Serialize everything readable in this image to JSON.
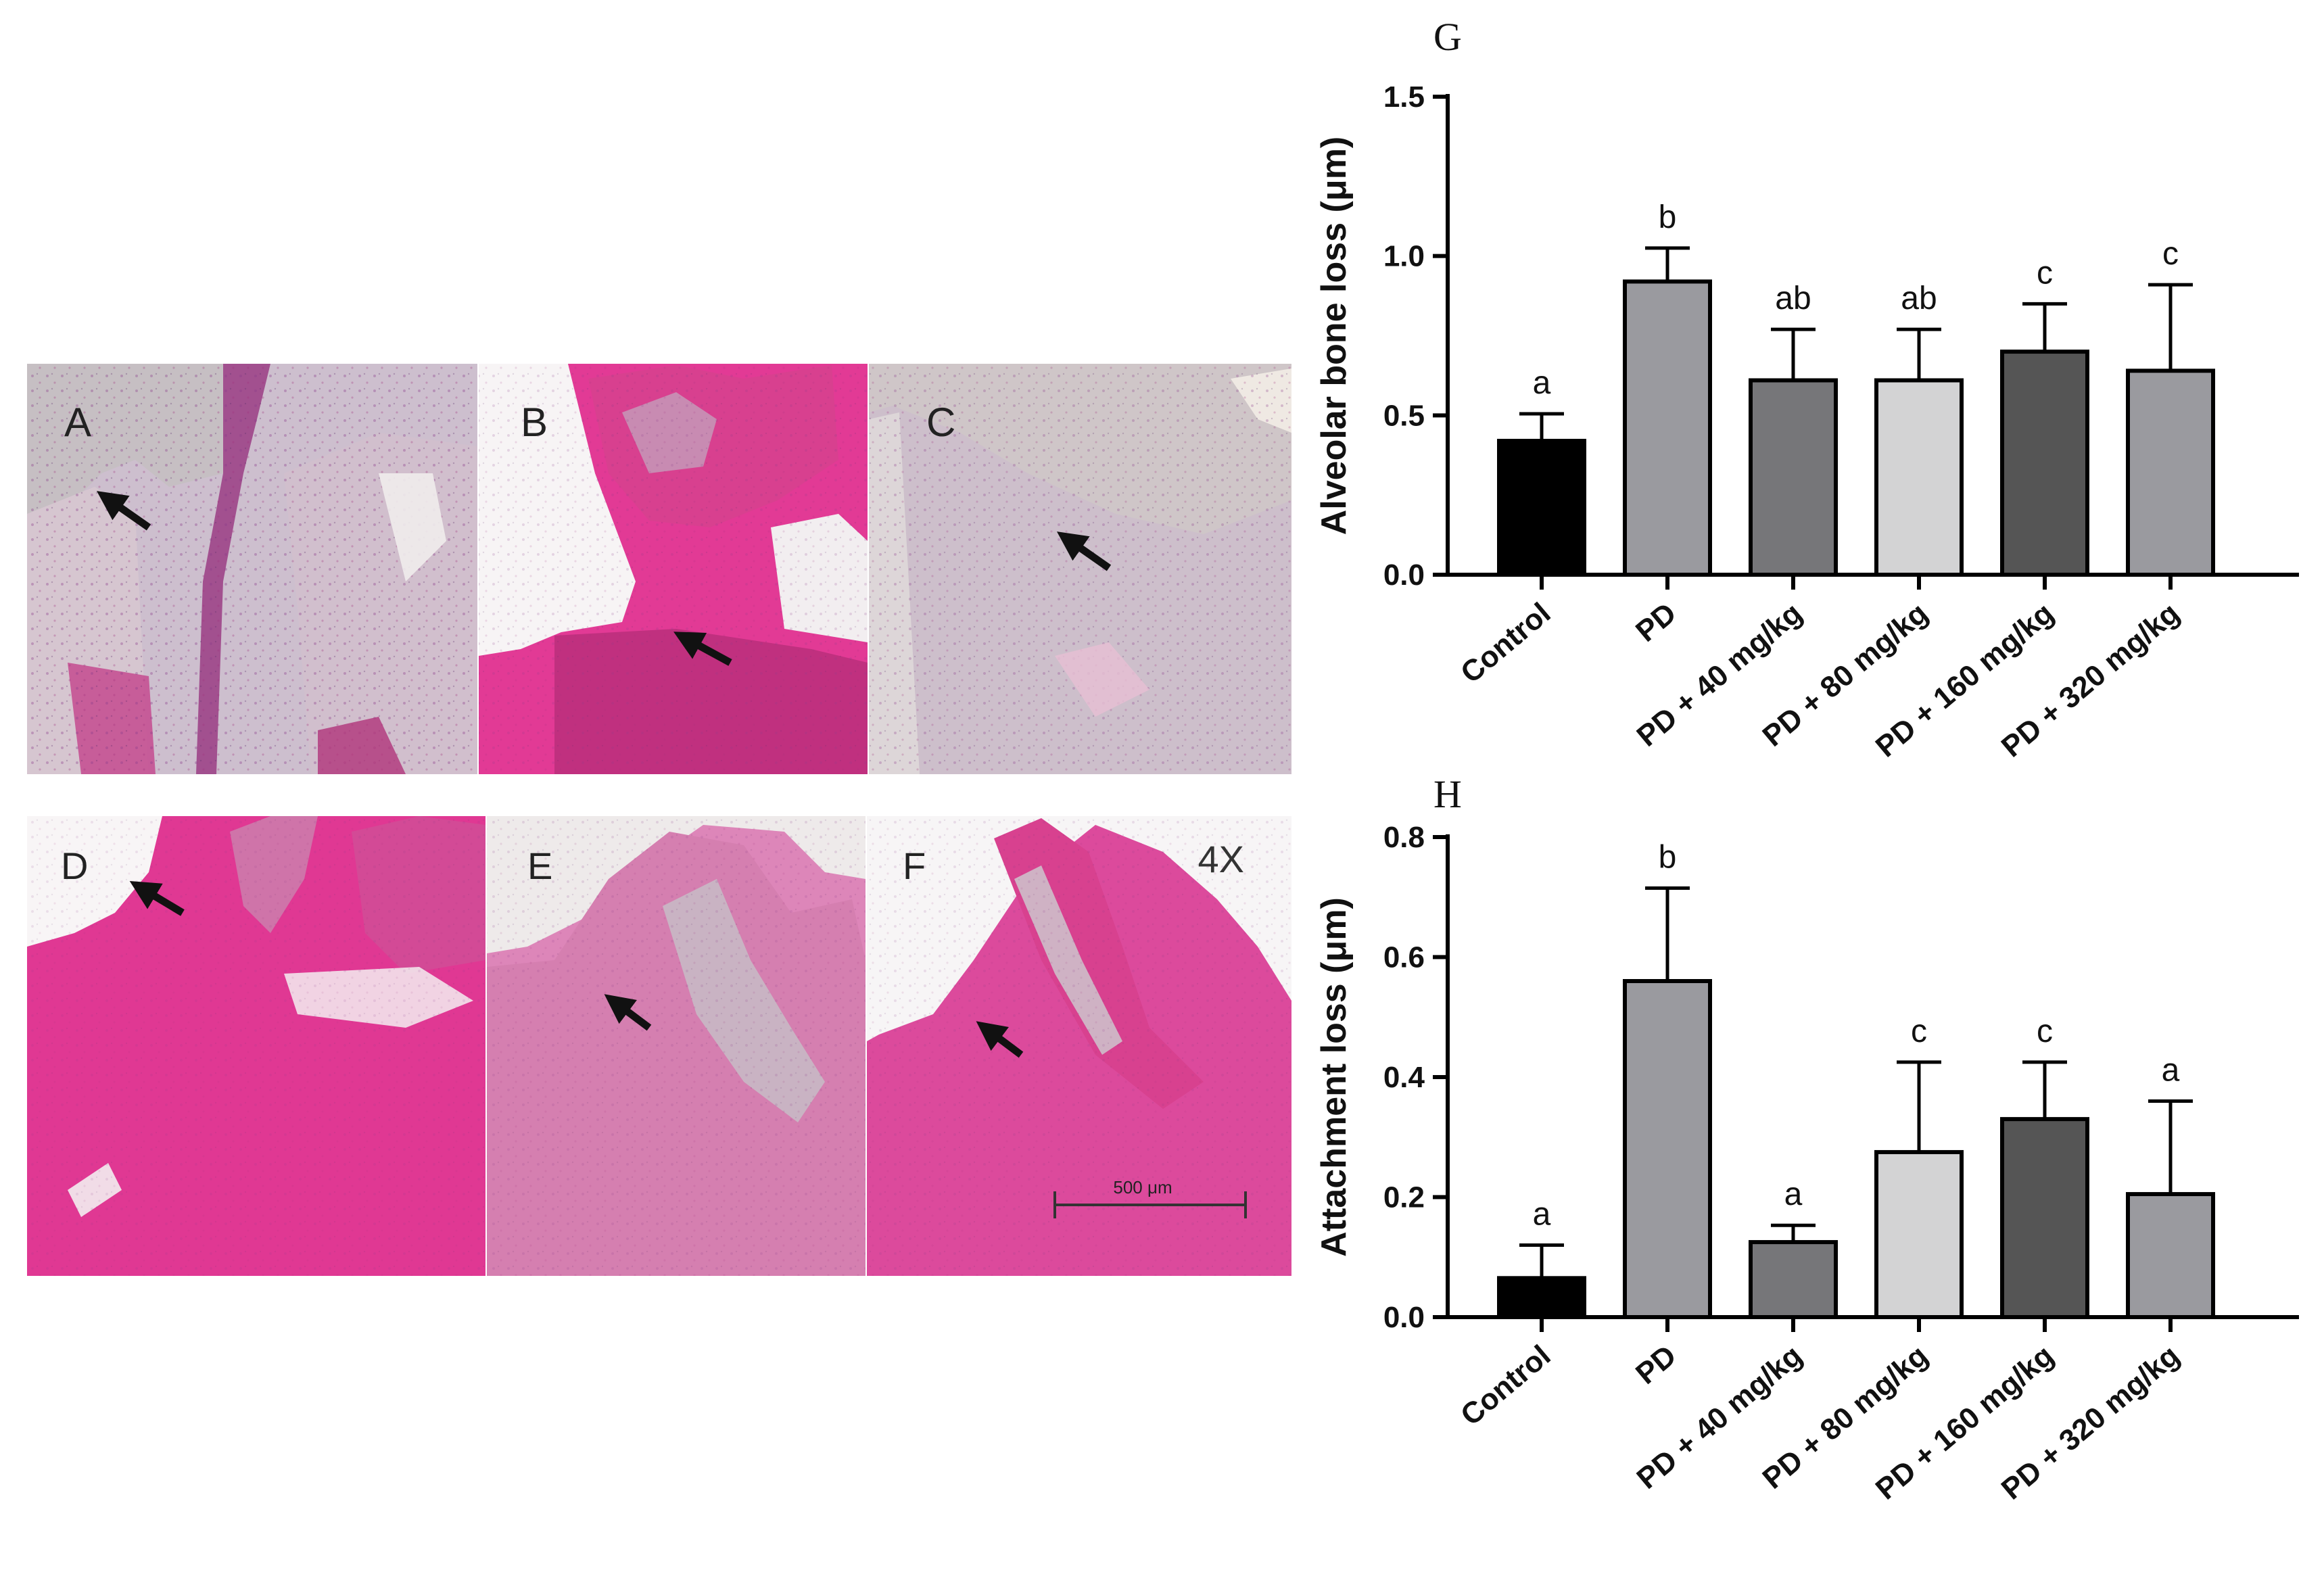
{
  "panels": {
    "labels": [
      "A",
      "B",
      "C",
      "D",
      "E",
      "F"
    ],
    "magnification": "4X",
    "scale_bar": "500 μm",
    "colors": {
      "pale_tissue": "#c9b9c9",
      "eosin": "#e0338f",
      "background": "#f2f0ee",
      "arrow": "#111111"
    }
  },
  "chart_data": [
    {
      "type": "bar",
      "panel_letter": "G",
      "ylabel": "Alveolar bone loss (μm)",
      "xlabel": "",
      "categories": [
        "Control",
        "PD",
        "PD + 40 mg/kg",
        "PD + 80 mg/kg",
        "PD + 160 mg/kg",
        "PD + 320 mg/kg"
      ],
      "values": [
        0.42,
        0.92,
        0.61,
        0.61,
        0.7,
        0.64
      ],
      "errors": [
        0.085,
        0.105,
        0.16,
        0.16,
        0.15,
        0.27
      ],
      "significance": [
        "a",
        "b",
        "ab",
        "ab",
        "c",
        "c"
      ],
      "bar_colors": [
        "#000000",
        "#9a9a9f",
        "#767679",
        "#d3d3d4",
        "#555555",
        "#9a9a9f"
      ],
      "ylim": [
        0,
        1.5
      ],
      "yticks": [
        "0.0",
        "0.5",
        "1.0",
        "1.5"
      ],
      "grid": false
    },
    {
      "type": "bar",
      "panel_letter": "H",
      "ylabel": "Attachment loss (μm)",
      "xlabel": "",
      "categories": [
        "Control",
        "PD",
        "PD + 40 mg/kg",
        "PD + 80 mg/kg",
        "PD + 160 mg/kg",
        "PD + 320 mg/kg"
      ],
      "values": [
        0.065,
        0.56,
        0.125,
        0.275,
        0.33,
        0.205
      ],
      "errors": [
        0.055,
        0.155,
        0.028,
        0.15,
        0.095,
        0.155
      ],
      "significance": [
        "a",
        "b",
        "a",
        "c",
        "c",
        "a"
      ],
      "bar_colors": [
        "#000000",
        "#9a9a9f",
        "#767679",
        "#d3d3d4",
        "#555555",
        "#9a9a9f"
      ],
      "ylim": [
        0,
        0.8
      ],
      "yticks": [
        "0.0",
        "0.2",
        "0.4",
        "0.6",
        "0.8"
      ],
      "grid": false
    }
  ]
}
